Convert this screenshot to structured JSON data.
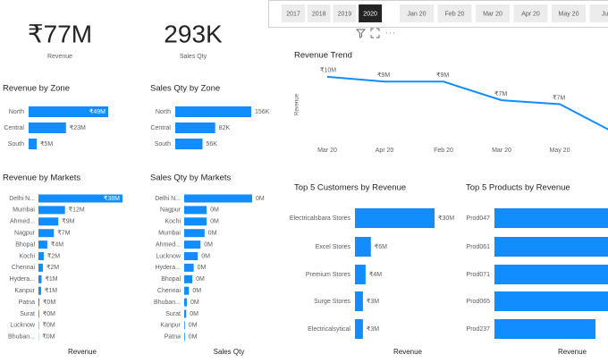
{
  "cards": [
    {
      "value": "₹77M",
      "label": "Revenue"
    },
    {
      "value": "293K",
      "label": "Sales Qty"
    }
  ],
  "year_slicer": {
    "options": [
      "2017",
      "2018",
      "2019",
      "2020"
    ],
    "selected": 3
  },
  "month_slicer": {
    "options": [
      "Jan 20",
      "Feb 20",
      "Mar 20",
      "Apr 20",
      "May 20",
      "Jun"
    ]
  },
  "chart_data": [
    {
      "type": "bar",
      "orientation": "horizontal",
      "title": "Revenue by Zone",
      "color": "#118dff",
      "categories": [
        "North",
        "Central",
        "South"
      ],
      "values": [
        49,
        23,
        5
      ],
      "value_labels": [
        "₹49M",
        "₹23M",
        "₹5M"
      ]
    },
    {
      "type": "bar",
      "orientation": "horizontal",
      "title": "Sales Qty by Zone",
      "color": "#118dff",
      "categories": [
        "North",
        "Central",
        "South"
      ],
      "values": [
        156,
        82,
        56
      ],
      "value_labels": [
        "156K",
        "82K",
        "56K"
      ]
    },
    {
      "type": "bar",
      "orientation": "horizontal",
      "title": "Revenue by Markets",
      "color": "#118dff",
      "x_label": "Revenue",
      "categories": [
        "Delhi N...",
        "Mumbai",
        "Ahmed...",
        "Nagpur",
        "Bhopal",
        "Kochi",
        "Chennai",
        "Hydera...",
        "Kanpur",
        "Patna",
        "Surat",
        "Lucknow",
        "Bhuban..."
      ],
      "values": [
        38,
        12,
        9,
        7,
        4,
        2.4,
        2,
        1.4,
        1.2,
        0.4,
        0.3,
        0.2,
        0.1
      ],
      "value_labels": [
        "₹38M",
        "₹12M",
        "₹9M",
        "₹7M",
        "₹4M",
        "₹2M",
        "₹2M",
        "₹1M",
        "₹1M",
        "₹0M",
        "₹0M",
        "₹0M",
        "₹0M"
      ]
    },
    {
      "type": "bar",
      "orientation": "horizontal",
      "title": "Sales Qty by Markets",
      "color": "#118dff",
      "x_label": "Sales Qty",
      "categories": [
        "Delhi N...",
        "Nagpur",
        "Kochi",
        "Mumbai",
        "Ahmed...",
        "Lucknow",
        "Hydera...",
        "Bhopal",
        "Chennai",
        "Bhuban...",
        "Surat",
        "Kanpur",
        "Patna"
      ],
      "values": [
        0.1,
        0.033,
        0.033,
        0.03,
        0.024,
        0.02,
        0.014,
        0.012,
        0.007,
        0.004,
        0.003,
        0.001,
        0.001
      ],
      "value_labels": [
        "0M",
        "0M",
        "0M",
        "0M",
        "0M",
        "0M",
        "0M",
        "0M",
        "0M",
        "0M",
        "0M",
        "0M",
        "0M"
      ]
    },
    {
      "type": "line",
      "title": "Revenue Trend",
      "y_label": "Revenue",
      "color": "#118dff",
      "categories": [
        "Mar 20",
        "Apr 20",
        "Feb 20",
        "Mar 20",
        "May 20",
        null
      ],
      "values": [
        9.6,
        9.1,
        9.1,
        7.2,
        6.8,
        3.7
      ],
      "value_labels": [
        "₹10M",
        "₹9M",
        "₹9M",
        "₹7M",
        "₹7M",
        null
      ],
      "ylim": [
        3,
        10.5
      ]
    },
    {
      "type": "bar",
      "orientation": "horizontal",
      "title": "Top 5 Customers by Revenue",
      "color": "#118dff",
      "x_label": "Revenue",
      "categories": [
        "Electricalsbara Stores",
        "Excel Stores",
        "Premium Stores",
        "Surge Stores",
        "Electricalsytical"
      ],
      "values": [
        30,
        6,
        4,
        3,
        3
      ],
      "value_labels": [
        "₹30M",
        "₹6M",
        "₹4M",
        "₹3M",
        "₹3M"
      ]
    },
    {
      "type": "bar",
      "orientation": "horizontal",
      "title": "Top 5 Products by Revenue",
      "color": "#118dff",
      "x_label": "Revenue",
      "categories": [
        "Prod047",
        "Prod061",
        "Prod071",
        "Prod065",
        "Prod237"
      ],
      "values": [
        16,
        15.5,
        15,
        14.5,
        12
      ]
    }
  ]
}
